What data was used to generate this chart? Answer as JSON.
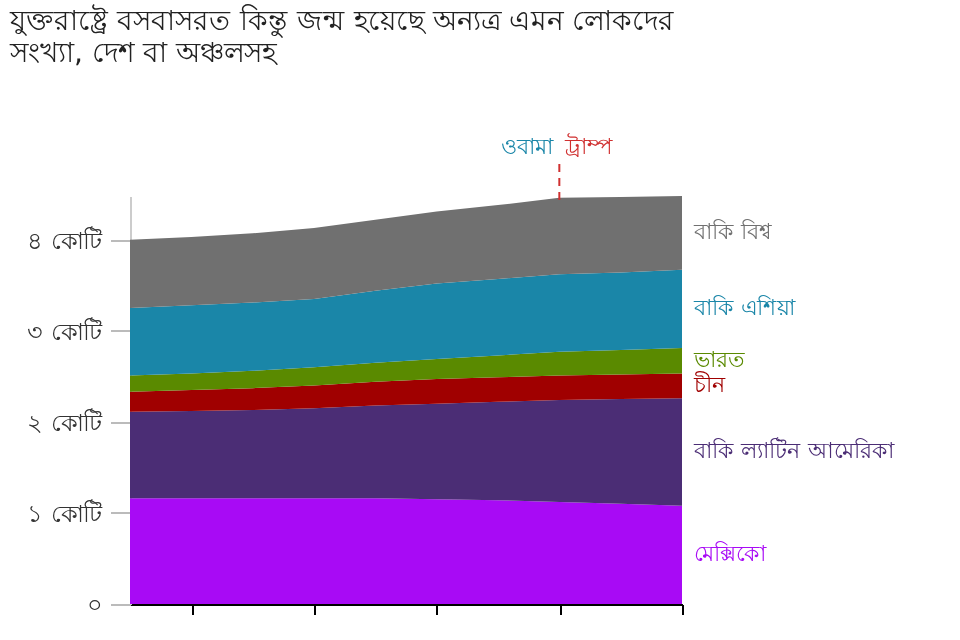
{
  "chart_data": {
    "type": "area",
    "stacked": true,
    "title": "যুক্তরাষ্ট্রে বসবাসরত কিন্তু জন্ম হয়েছে অন্যত্র এমন লোকদের সংখ্যা, দেশ বা অঞ্চলসহ",
    "categories": [
      null,
      null,
      null,
      null,
      null,
      null,
      null,
      null,
      null,
      null
    ],
    "series": [
      {
        "name": "মেক্সিকো",
        "color": "#a80af5",
        "values": [
          1.16,
          1.16,
          1.16,
          1.16,
          1.16,
          1.15,
          1.14,
          1.12,
          1.1,
          1.08
        ]
      },
      {
        "name": "বাকি ল্যাটিন আমেরিকা",
        "color": "#4b2d75",
        "values": [
          0.95,
          0.96,
          0.97,
          0.99,
          1.02,
          1.05,
          1.08,
          1.12,
          1.15,
          1.18
        ]
      },
      {
        "name": "চীন",
        "color": "#a00000",
        "values": [
          0.22,
          0.23,
          0.24,
          0.25,
          0.26,
          0.27,
          0.27,
          0.27,
          0.27,
          0.27
        ]
      },
      {
        "name": "ভারত",
        "color": "#5a8a00",
        "values": [
          0.18,
          0.18,
          0.19,
          0.2,
          0.21,
          0.22,
          0.24,
          0.26,
          0.27,
          0.28
        ]
      },
      {
        "name": "বাকি এশিয়া",
        "color": "#1a86a8",
        "values": [
          0.74,
          0.75,
          0.75,
          0.75,
          0.79,
          0.83,
          0.84,
          0.85,
          0.85,
          0.86
        ]
      },
      {
        "name": "বাকি বিশ্ব",
        "color": "#707070",
        "values": [
          0.75,
          0.75,
          0.76,
          0.78,
          0.78,
          0.79,
          0.81,
          0.84,
          0.83,
          0.81
        ]
      }
    ],
    "ylim": [
      0,
      4.48
    ],
    "yticks": [
      {
        "value": 0,
        "label": "০"
      },
      {
        "value": 1,
        "label": "১ কোটি"
      },
      {
        "value": 2,
        "label": "২ কোটি"
      },
      {
        "value": 3,
        "label": "৩ কোটি"
      },
      {
        "value": 4,
        "label": "৪ কোটি"
      }
    ],
    "tick_labels": "y",
    "grid": false,
    "annotations": [
      "ওবামা",
      "ট্রাম্প"
    ]
  }
}
